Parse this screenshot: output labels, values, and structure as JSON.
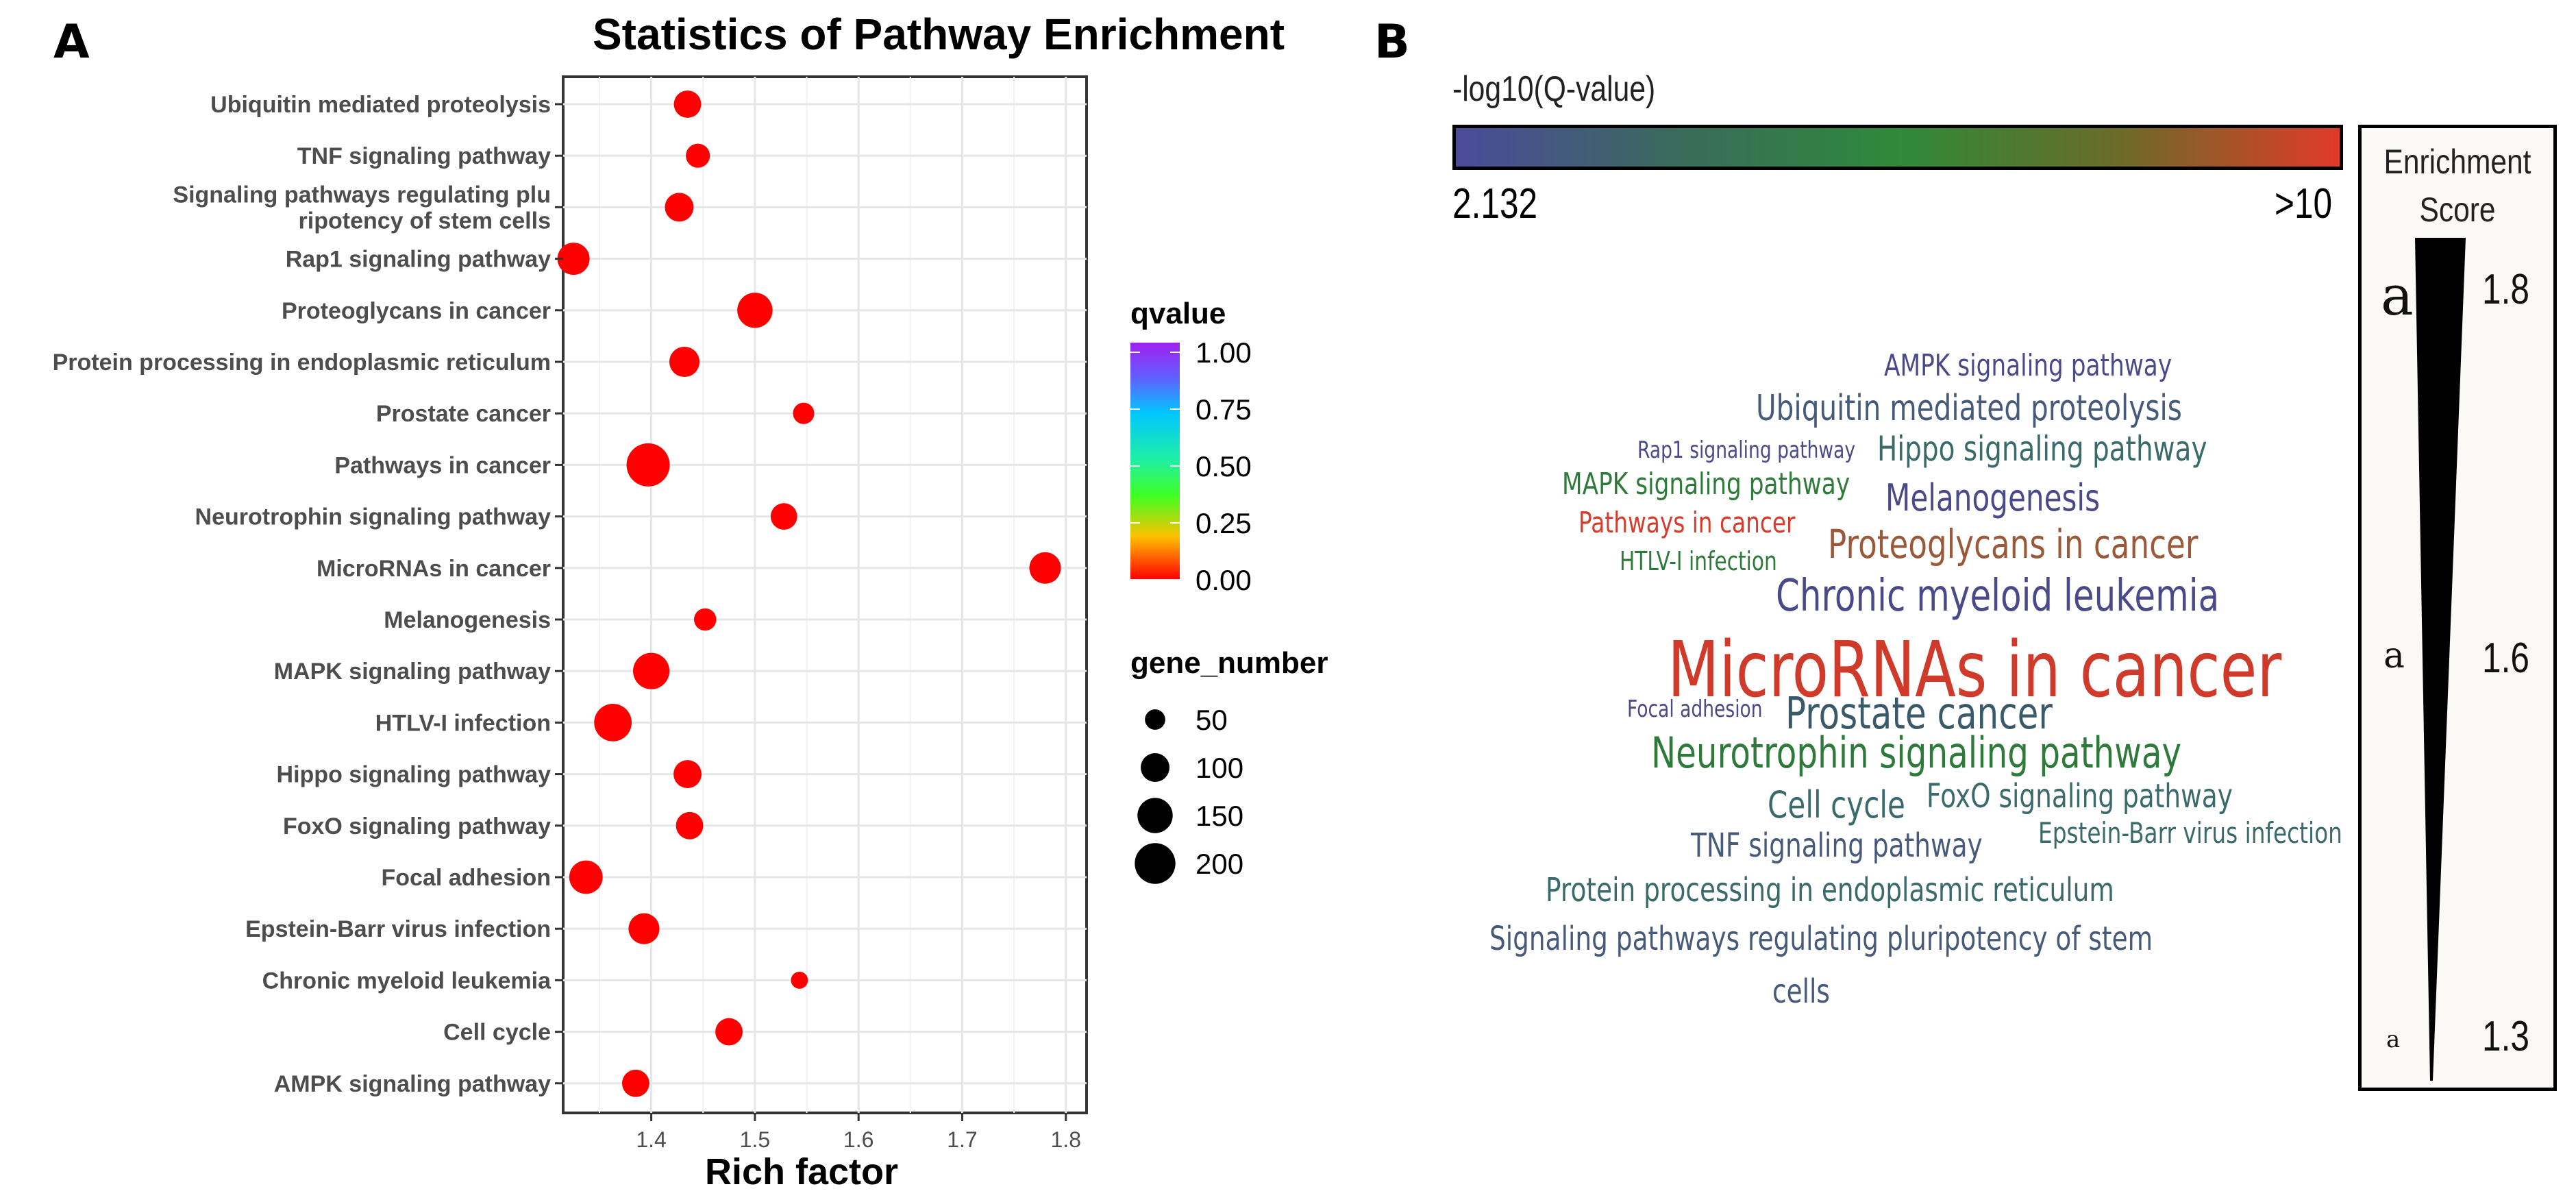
{
  "panel_a_label": "A",
  "panel_b_label": "B",
  "chart_data": [
    {
      "type": "scatter",
      "title": "Statistics of Pathway Enrichment",
      "xlabel": "Rich factor",
      "ylabel": "",
      "xlim": [
        1.315,
        1.82
      ],
      "xticks": [
        "1.4",
        "1.5",
        "1.6",
        "1.7",
        "1.8"
      ],
      "xtick_values": [
        1.4,
        1.5,
        1.6,
        1.7,
        1.8
      ],
      "grid": true,
      "categories": [
        "Ubiquitin mediated proteolysis",
        "TNF signaling pathway",
        "Signaling pathways regulating plu\nripotency of stem cells",
        "Rap1 signaling pathway",
        "Proteoglycans in cancer",
        "Protein processing in endoplasmic reticulum",
        "Prostate cancer",
        "Pathways in cancer",
        "Neurotrophin signaling pathway",
        "MicroRNAs in cancer",
        "Melanogenesis",
        "MAPK signaling pathway",
        "HTLV-I infection",
        "Hippo signaling pathway",
        "FoxO signaling pathway",
        "Focal adhesion",
        "Epstein-Barr virus infection",
        "Chronic myeloid leukemia",
        "Cell cycle",
        "AMPK signaling pathway"
      ],
      "rich_factor": [
        1.435,
        1.445,
        1.427,
        1.325,
        1.5,
        1.432,
        1.547,
        1.397,
        1.528,
        1.78,
        1.452,
        1.4,
        1.363,
        1.435,
        1.437,
        1.337,
        1.393,
        1.543,
        1.475,
        1.385
      ],
      "gene_number": [
        90,
        70,
        100,
        125,
        150,
        110,
        55,
        225,
        85,
        120,
        60,
        160,
        170,
        95,
        90,
        135,
        115,
        35,
        90,
        90
      ],
      "qvalue": [
        0,
        0,
        0,
        0,
        0,
        0,
        0,
        0,
        0,
        0,
        0,
        0,
        0,
        0,
        0,
        0,
        0,
        0,
        0,
        0
      ],
      "legend": {
        "color_title": "qvalue",
        "color_labels": [
          "1.00",
          "0.75",
          "0.50",
          "0.25",
          "0.00"
        ],
        "size_title": "gene_number",
        "size_labels": [
          "50",
          "100",
          "150",
          "200"
        ],
        "size_values": [
          50,
          100,
          150,
          200
        ],
        "placement": "right"
      },
      "point_color": "#ff0000"
    },
    {
      "type": "wordcloud",
      "colorbar_title": "-log10(Q-value)",
      "colorbar_min": "2.132",
      "colorbar_max": ">10",
      "enrichment_title": "Enrichment\nScore",
      "enrichment_values": [
        "1.8",
        "1.6",
        "1.3"
      ],
      "enrichment_marker": "a",
      "words": [
        {
          "text": "AMPK signaling pathway",
          "color": "#4a4a8a"
        },
        {
          "text": "Ubiquitin mediated proteolysis",
          "color": "#475a7a"
        },
        {
          "text": "Rap1 signaling pathway",
          "color": "#4a4a8a"
        },
        {
          "text": "Hippo signaling pathway",
          "color": "#3a6a6a"
        },
        {
          "text": "MAPK signaling pathway",
          "color": "#2e7a3a"
        },
        {
          "text": "Melanogenesis",
          "color": "#4a4a8a"
        },
        {
          "text": "Pathways in cancer",
          "color": "#d83a2c"
        },
        {
          "text": "Proteoglycans in cancer",
          "color": "#9a5a3a"
        },
        {
          "text": "HTLV-I infection",
          "color": "#2e7a3a"
        },
        {
          "text": "Chronic myeloid leukemia",
          "color": "#4a4a8a"
        },
        {
          "text": "MicroRNAs in cancer",
          "color": "#d03a2a"
        },
        {
          "text": "Focal adhesion",
          "color": "#4a4a8a"
        },
        {
          "text": "Prostate cancer",
          "color": "#3a5a6a"
        },
        {
          "text": "Neurotrophin signaling pathway",
          "color": "#2e7a3a"
        },
        {
          "text": "Cell cycle",
          "color": "#3a6a6a"
        },
        {
          "text": "FoxO signaling pathway",
          "color": "#3a6a6a"
        },
        {
          "text": "TNF signaling pathway",
          "color": "#475a7a"
        },
        {
          "text": "Epstein-Barr virus infection",
          "color": "#3a6a6a"
        },
        {
          "text": "Protein processing in endoplasmic reticulum",
          "color": "#3a6a6a"
        },
        {
          "text": "Signaling pathways regulating pluripotency of stem",
          "color": "#475a7a"
        },
        {
          "text": "cells",
          "color": "#475a7a"
        }
      ]
    }
  ]
}
